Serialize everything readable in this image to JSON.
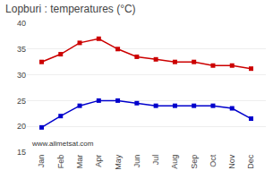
{
  "chart_data": {
    "type": "line",
    "title": "Lopburi : temperatures (°C)",
    "categories": [
      "Jan",
      "Feb",
      "Mar",
      "Apr",
      "May",
      "Jun",
      "Jul",
      "Aug",
      "Sep",
      "Oct",
      "Nov",
      "Dec"
    ],
    "series": [
      {
        "color": "#cc0000",
        "values": [
          32.5,
          34.0,
          36.2,
          37.0,
          35.0,
          33.5,
          33.0,
          32.5,
          32.5,
          31.8,
          31.8,
          31.2
        ]
      },
      {
        "color": "#0000cc",
        "values": [
          19.8,
          22.0,
          24.0,
          25.0,
          25.0,
          24.5,
          24.0,
          24.0,
          24.0,
          24.0,
          23.5,
          21.5
        ]
      }
    ],
    "marker": "square",
    "ylim": [
      15,
      40
    ],
    "yticks": [
      15,
      20,
      25,
      30,
      35,
      40
    ],
    "grid": true,
    "annotations": [
      "www.allmetsat.com"
    ]
  }
}
